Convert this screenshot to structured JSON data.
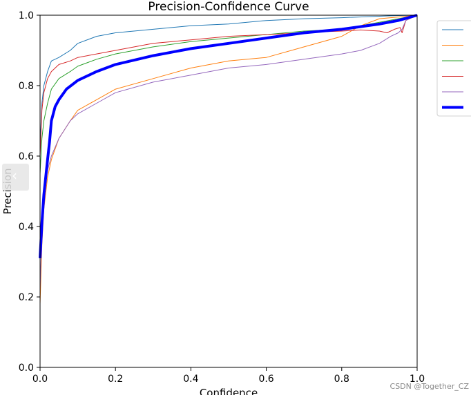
{
  "chart_data": {
    "type": "line",
    "title": "Precision-Confidence Curve",
    "xlabel": "Confidence",
    "ylabel": "Precision",
    "xlim": [
      0.0,
      1.0
    ],
    "ylim": [
      0.0,
      1.0
    ],
    "xticks": [
      "0.0",
      "0.2",
      "0.4",
      "0.6",
      "0.8",
      "1.0"
    ],
    "yticks": [
      "0.0",
      "0.2",
      "0.4",
      "0.6",
      "0.8",
      "1.0"
    ],
    "grid": false,
    "legend_position": "outside top-right",
    "series": [
      {
        "name": "",
        "color": "#1f77b4",
        "width": 1,
        "x": [
          0.0,
          0.005,
          0.01,
          0.02,
          0.03,
          0.05,
          0.08,
          0.1,
          0.15,
          0.2,
          0.3,
          0.4,
          0.5,
          0.6,
          0.7,
          0.8,
          0.9,
          0.95,
          1.0
        ],
        "y": [
          0.63,
          0.75,
          0.8,
          0.84,
          0.87,
          0.88,
          0.9,
          0.92,
          0.94,
          0.95,
          0.96,
          0.97,
          0.975,
          0.985,
          0.99,
          0.993,
          0.997,
          0.999,
          1.0
        ]
      },
      {
        "name": "",
        "color": "#ff7f0e",
        "width": 1,
        "x": [
          0.0,
          0.005,
          0.01,
          0.02,
          0.03,
          0.05,
          0.08,
          0.1,
          0.15,
          0.2,
          0.3,
          0.4,
          0.5,
          0.6,
          0.7,
          0.8,
          0.85,
          0.9,
          0.95,
          1.0
        ],
        "y": [
          0.18,
          0.35,
          0.45,
          0.54,
          0.59,
          0.65,
          0.7,
          0.73,
          0.76,
          0.79,
          0.82,
          0.85,
          0.87,
          0.88,
          0.91,
          0.94,
          0.97,
          0.99,
          0.995,
          1.0
        ]
      },
      {
        "name": "",
        "color": "#2ca02c",
        "width": 1,
        "x": [
          0.0,
          0.005,
          0.01,
          0.02,
          0.03,
          0.05,
          0.08,
          0.1,
          0.15,
          0.2,
          0.3,
          0.4,
          0.5,
          0.6,
          0.7,
          0.8,
          0.9,
          0.95,
          1.0
        ],
        "y": [
          0.55,
          0.65,
          0.7,
          0.75,
          0.79,
          0.82,
          0.84,
          0.855,
          0.875,
          0.89,
          0.91,
          0.925,
          0.935,
          0.945,
          0.955,
          0.96,
          0.98,
          0.99,
          1.0
        ]
      },
      {
        "name": "",
        "color": "#d62728",
        "width": 1,
        "x": [
          0.0,
          0.005,
          0.01,
          0.02,
          0.03,
          0.05,
          0.08,
          0.1,
          0.15,
          0.2,
          0.3,
          0.4,
          0.5,
          0.6,
          0.7,
          0.75,
          0.8,
          0.85,
          0.9,
          0.92,
          0.94,
          0.955,
          0.96,
          0.97,
          1.0
        ],
        "y": [
          0.6,
          0.73,
          0.78,
          0.82,
          0.84,
          0.86,
          0.87,
          0.88,
          0.89,
          0.9,
          0.92,
          0.93,
          0.94,
          0.945,
          0.95,
          0.953,
          0.955,
          0.958,
          0.955,
          0.95,
          0.96,
          0.965,
          0.95,
          0.985,
          1.0
        ]
      },
      {
        "name": "",
        "color": "#9467bd",
        "width": 1,
        "x": [
          0.0,
          0.005,
          0.01,
          0.02,
          0.03,
          0.05,
          0.08,
          0.1,
          0.15,
          0.2,
          0.3,
          0.4,
          0.5,
          0.6,
          0.7,
          0.8,
          0.85,
          0.9,
          0.93,
          0.95,
          0.96,
          0.97,
          1.0
        ],
        "y": [
          0.22,
          0.4,
          0.5,
          0.56,
          0.6,
          0.65,
          0.7,
          0.72,
          0.75,
          0.78,
          0.81,
          0.83,
          0.85,
          0.86,
          0.875,
          0.89,
          0.9,
          0.92,
          0.94,
          0.95,
          0.96,
          0.985,
          1.0
        ]
      },
      {
        "name": "",
        "color": "#0000ff",
        "width": 4,
        "x": [
          0.0,
          0.005,
          0.01,
          0.02,
          0.025,
          0.03,
          0.04,
          0.05,
          0.07,
          0.1,
          0.15,
          0.2,
          0.3,
          0.4,
          0.5,
          0.6,
          0.7,
          0.8,
          0.9,
          0.95,
          1.0
        ],
        "y": [
          0.31,
          0.41,
          0.49,
          0.59,
          0.64,
          0.7,
          0.74,
          0.76,
          0.79,
          0.815,
          0.84,
          0.86,
          0.885,
          0.905,
          0.92,
          0.935,
          0.95,
          0.96,
          0.975,
          0.985,
          1.0
        ]
      }
    ]
  },
  "watermark": "CSDN @Together_CZ",
  "side_tab_glyph": "‹"
}
